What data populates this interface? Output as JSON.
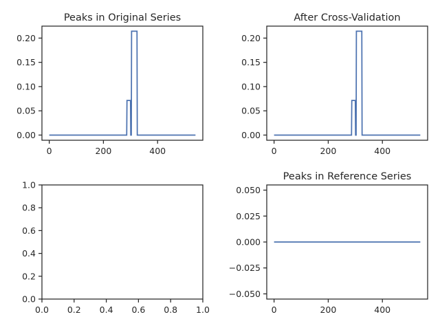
{
  "chart_data": [
    {
      "type": "line",
      "title": "Peaks in Original Series",
      "xlabel": "",
      "ylabel": "",
      "xlim": [
        -27,
        567
      ],
      "ylim": [
        -0.0107,
        0.2247
      ],
      "xticks": [
        0,
        200,
        400
      ],
      "yticks": [
        0.0,
        0.05,
        0.1,
        0.15,
        0.2
      ],
      "xtick_labels": [
        "0",
        "200",
        "400"
      ],
      "ytick_labels": [
        "0.00",
        "0.05",
        "0.10",
        "0.15",
        "0.20"
      ],
      "grid": false,
      "series": [
        {
          "color": "#4c72b0",
          "x": [
            0,
            286,
            287,
            300,
            301,
            303,
            304,
            306,
            307,
            324,
            325,
            540
          ],
          "y": [
            0,
            0,
            0.0714,
            0.0714,
            0,
            0,
            0.2143,
            0.2143,
            0.2143,
            0.2143,
            0,
            0
          ]
        }
      ]
    },
    {
      "type": "line",
      "title": "After Cross-Validation",
      "xlabel": "",
      "ylabel": "",
      "xlim": [
        -27,
        567
      ],
      "ylim": [
        -0.0107,
        0.2247
      ],
      "xticks": [
        0,
        200,
        400
      ],
      "yticks": [
        0.0,
        0.05,
        0.1,
        0.15,
        0.2
      ],
      "xtick_labels": [
        "0",
        "200",
        "400"
      ],
      "ytick_labels": [
        "0.00",
        "0.05",
        "0.10",
        "0.15",
        "0.20"
      ],
      "grid": false,
      "series": [
        {
          "color": "#4c72b0",
          "x": [
            0,
            286,
            287,
            300,
            301,
            303,
            304,
            306,
            307,
            324,
            325,
            540
          ],
          "y": [
            0,
            0,
            0.0714,
            0.0714,
            0,
            0,
            0.2143,
            0.2143,
            0.2143,
            0.2143,
            0,
            0
          ]
        }
      ]
    },
    {
      "type": "line",
      "title": "",
      "xlabel": "",
      "ylabel": "",
      "xlim": [
        0,
        1
      ],
      "ylim": [
        0,
        1
      ],
      "xticks": [
        0,
        0.2,
        0.4,
        0.6,
        0.8,
        1.0
      ],
      "yticks": [
        0,
        0.2,
        0.4,
        0.6,
        0.8,
        1.0
      ],
      "xtick_labels": [
        "0.0",
        "0.2",
        "0.4",
        "0.6",
        "0.8",
        "1.0"
      ],
      "ytick_labels": [
        "0.0",
        "0.2",
        "0.4",
        "0.6",
        "0.8",
        "1.0"
      ],
      "grid": false,
      "series": []
    },
    {
      "type": "line",
      "title": "Peaks in Reference Series",
      "xlabel": "",
      "ylabel": "",
      "xlim": [
        -27,
        567
      ],
      "ylim": [
        -0.055,
        0.055
      ],
      "xticks": [
        0,
        200,
        400
      ],
      "yticks": [
        -0.05,
        -0.025,
        0.0,
        0.025,
        0.05
      ],
      "xtick_labels": [
        "0",
        "200",
        "400"
      ],
      "ytick_labels": [
        "−0.050",
        "−0.025",
        "0.000",
        "0.025",
        "0.050"
      ],
      "grid": false,
      "series": [
        {
          "color": "#4c72b0",
          "x": [
            0,
            540
          ],
          "y": [
            0,
            0
          ]
        }
      ]
    }
  ]
}
